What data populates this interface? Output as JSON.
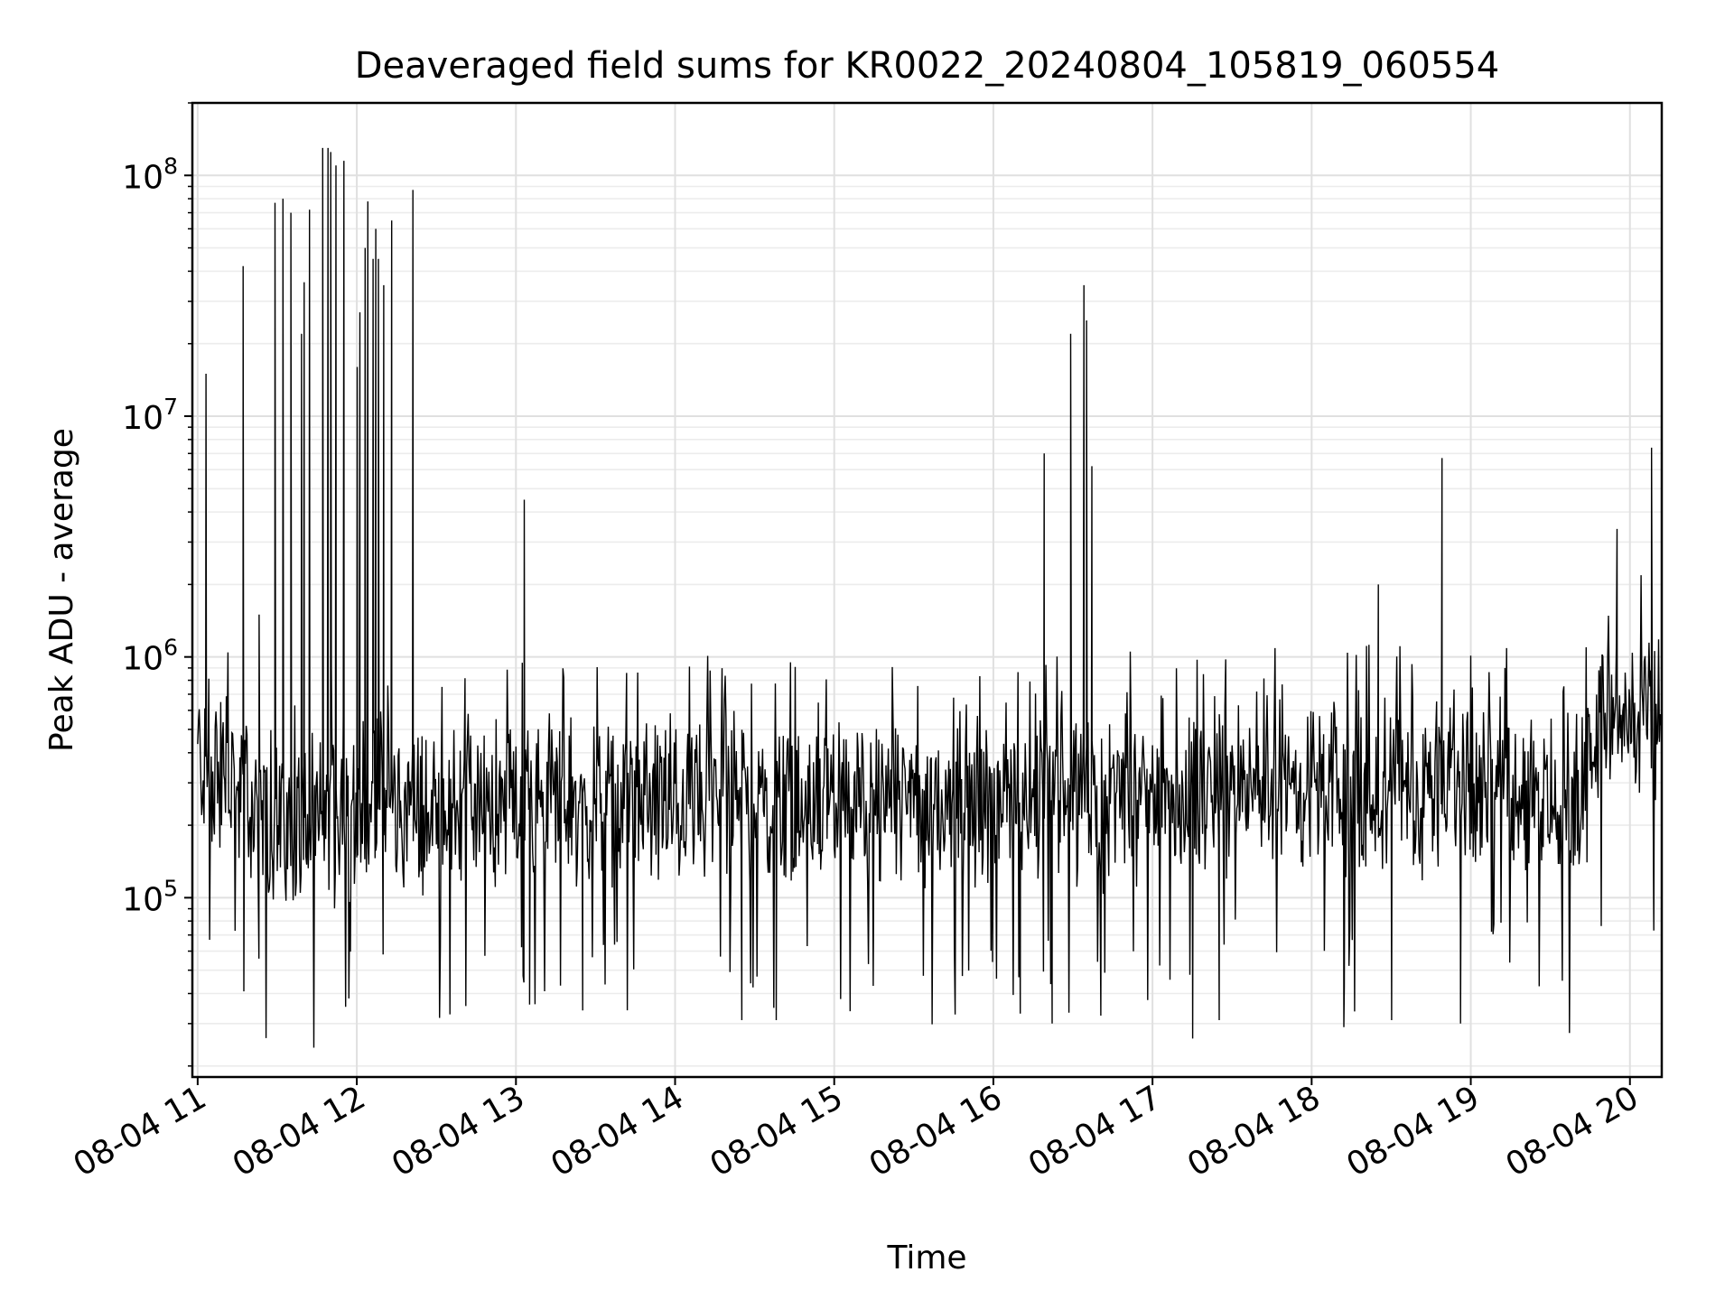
{
  "chart_data": {
    "type": "line",
    "title": "Deaveraged field sums for KR0022_20240804_105819_060554",
    "xlabel": "Time",
    "ylabel": "Peak ADU - average",
    "y_scale": "log",
    "ylim": [
      18000,
      200000000
    ],
    "xlim": [
      "2024-08-04 10:58",
      "2024-08-04 20:12"
    ],
    "grid": "on",
    "x_ticks": [
      "08-04 11",
      "08-04 12",
      "08-04 13",
      "08-04 14",
      "08-04 15",
      "08-04 16",
      "08-04 17",
      "08-04 18",
      "08-04 19",
      "08-04 20"
    ],
    "y_ticks": [
      {
        "value": 100000,
        "label_base": "10",
        "label_exp": "5"
      },
      {
        "value": 1000000,
        "label_base": "10",
        "label_exp": "6"
      },
      {
        "value": 10000000,
        "label_base": "10",
        "label_exp": "7"
      },
      {
        "value": 100000000,
        "label_base": "10",
        "label_exp": "8"
      }
    ],
    "line_color": "#000000",
    "series": [
      {
        "x": [
          "2024-08-04 11:00",
          "2024-08-04 11:05",
          "2024-08-04 11:10",
          "2024-08-04 11:15",
          "2024-08-04 11:20",
          "2024-08-04 11:25",
          "2024-08-04 11:30",
          "2024-08-04 11:35",
          "2024-08-04 11:40",
          "2024-08-04 11:45",
          "2024-08-04 11:50",
          "2024-08-04 11:55",
          "2024-08-04 12:00",
          "2024-08-04 12:05",
          "2024-08-04 12:10",
          "2024-08-04 12:15",
          "2024-08-04 12:20",
          "2024-08-04 12:30",
          "2024-08-04 12:40",
          "2024-08-04 12:50",
          "2024-08-04 13:00",
          "2024-08-04 13:10",
          "2024-08-04 13:20",
          "2024-08-04 13:30",
          "2024-08-04 13:40",
          "2024-08-04 13:50",
          "2024-08-04 14:00",
          "2024-08-04 14:10",
          "2024-08-04 14:20",
          "2024-08-04 14:30",
          "2024-08-04 14:40",
          "2024-08-04 14:50",
          "2024-08-04 15:00",
          "2024-08-04 15:10",
          "2024-08-04 15:20",
          "2024-08-04 15:30",
          "2024-08-04 15:40",
          "2024-08-04 15:50",
          "2024-08-04 16:00",
          "2024-08-04 16:10",
          "2024-08-04 16:20",
          "2024-08-04 16:30",
          "2024-08-04 16:40",
          "2024-08-04 16:50",
          "2024-08-04 17:00",
          "2024-08-04 17:10",
          "2024-08-04 17:20",
          "2024-08-04 17:30",
          "2024-08-04 17:40",
          "2024-08-04 17:50",
          "2024-08-04 18:00",
          "2024-08-04 18:10",
          "2024-08-04 18:20",
          "2024-08-04 18:30",
          "2024-08-04 18:40",
          "2024-08-04 18:50",
          "2024-08-04 19:00",
          "2024-08-04 19:10",
          "2024-08-04 19:20",
          "2024-08-04 19:30",
          "2024-08-04 19:40",
          "2024-08-04 19:50",
          "2024-08-04 20:00",
          "2024-08-04 20:10"
        ],
        "y": [
          400000,
          300000,
          350000,
          280000,
          250000,
          200000,
          210000,
          190000,
          220000,
          200000,
          230000,
          210000,
          240000,
          260000,
          250000,
          240000,
          230000,
          230000,
          240000,
          240000,
          250000,
          250000,
          240000,
          230000,
          250000,
          260000,
          250000,
          260000,
          260000,
          270000,
          260000,
          260000,
          250000,
          250000,
          240000,
          240000,
          260000,
          260000,
          250000,
          260000,
          270000,
          260000,
          250000,
          270000,
          260000,
          270000,
          280000,
          290000,
          280000,
          280000,
          270000,
          270000,
          290000,
          280000,
          290000,
          300000,
          320000,
          310000,
          290000,
          260000,
          230000,
          650000,
          550000,
          600000
        ],
        "spikes": [
          {
            "x": "2024-08-04 11:03",
            "y": 15000000
          },
          {
            "x": "2024-08-04 11:23",
            "y": 1500000
          },
          {
            "x": "2024-08-04 11:29",
            "y": 77000000
          },
          {
            "x": "2024-08-04 11:32",
            "y": 80000000
          },
          {
            "x": "2024-08-04 11:35",
            "y": 70000000
          },
          {
            "x": "2024-08-04 11:39",
            "y": 22000000
          },
          {
            "x": "2024-08-04 11:40",
            "y": 36000000
          },
          {
            "x": "2024-08-04 11:42",
            "y": 72000000
          },
          {
            "x": "2024-08-04 11:47",
            "y": 130000000
          },
          {
            "x": "2024-08-04 11:49",
            "y": 130000000
          },
          {
            "x": "2024-08-04 11:50",
            "y": 125000000
          },
          {
            "x": "2024-08-04 11:52",
            "y": 110000000
          },
          {
            "x": "2024-08-04 11:55",
            "y": 115000000
          },
          {
            "x": "2024-08-04 12:00",
            "y": 16000000
          },
          {
            "x": "2024-08-04 12:01",
            "y": 27000000
          },
          {
            "x": "2024-08-04 12:03",
            "y": 50000000
          },
          {
            "x": "2024-08-04 12:04",
            "y": 78000000
          },
          {
            "x": "2024-08-04 12:06",
            "y": 45000000
          },
          {
            "x": "2024-08-04 12:07",
            "y": 60000000
          },
          {
            "x": "2024-08-04 12:08",
            "y": 45000000
          },
          {
            "x": "2024-08-04 12:10",
            "y": 35000000
          },
          {
            "x": "2024-08-04 12:13",
            "y": 65000000
          },
          {
            "x": "2024-08-04 12:21",
            "y": 87000000
          },
          {
            "x": "2024-08-04 13:03",
            "y": 4500000
          },
          {
            "x": "2024-08-04 16:19",
            "y": 7000000
          },
          {
            "x": "2024-08-04 16:29",
            "y": 22000000
          },
          {
            "x": "2024-08-04 16:34",
            "y": 35000000
          },
          {
            "x": "2024-08-04 16:35",
            "y": 25000000
          },
          {
            "x": "2024-08-04 16:37",
            "y": 6200000
          },
          {
            "x": "2024-08-04 18:25",
            "y": 2000000
          },
          {
            "x": "2024-08-04 18:49",
            "y": 6700000
          },
          {
            "x": "2024-08-04 19:55",
            "y": 3400000
          },
          {
            "x": "2024-08-04 20:08",
            "y": 7400000
          }
        ],
        "dips": [
          {
            "x": "2024-08-04 11:17",
            "y": 42000000
          },
          {
            "x": "2024-08-04 13:05",
            "y": 36000
          },
          {
            "x": "2024-08-04 13:25",
            "y": 34000
          },
          {
            "x": "2024-08-04 14:25",
            "y": 31000
          },
          {
            "x": "2024-08-04 14:38",
            "y": 31000
          },
          {
            "x": "2024-08-04 16:10",
            "y": 33000
          },
          {
            "x": "2024-08-04 16:22",
            "y": 30000
          },
          {
            "x": "2024-08-04 17:15",
            "y": 26000
          },
          {
            "x": "2024-08-04 17:25",
            "y": 31000
          },
          {
            "x": "2024-08-04 18:12",
            "y": 29000
          },
          {
            "x": "2024-08-04 18:30",
            "y": 31000
          },
          {
            "x": "2024-08-04 18:56",
            "y": 30000
          }
        ]
      }
    ]
  }
}
